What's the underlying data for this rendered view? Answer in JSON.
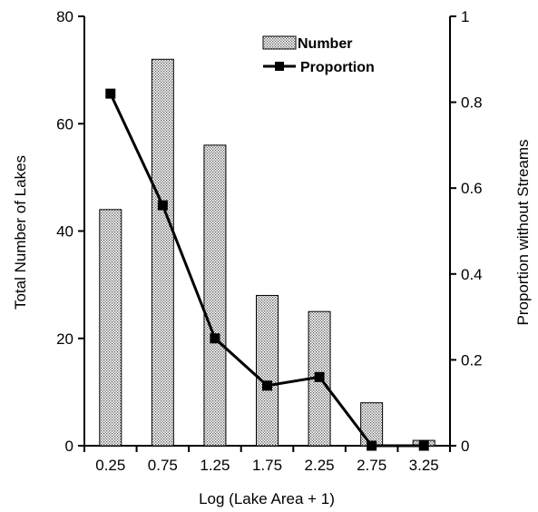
{
  "chart_data": {
    "type": "bar",
    "xlabel": "Log (Lake Area + 1)",
    "ylabel": "Total Number of Lakes",
    "y2label": "Proportion without Streams",
    "categories": [
      "0.25",
      "0.75",
      "1.25",
      "1.75",
      "2.25",
      "2.75",
      "3.25"
    ],
    "ylim": [
      0,
      80
    ],
    "y2lim": [
      0,
      1
    ],
    "yticks": [
      "0",
      "20",
      "40",
      "60",
      "80"
    ],
    "y2ticks": [
      "0",
      "0.2",
      "0.4",
      "0.6",
      "0.8",
      "1"
    ],
    "grid": false,
    "legend_position": "top-right",
    "series": [
      {
        "name": "Number",
        "type": "bar",
        "axis": "left",
        "pattern": "dotted-gray",
        "values": [
          44,
          72,
          56,
          28,
          25,
          8,
          1
        ]
      },
      {
        "name": "Proportion",
        "type": "line",
        "axis": "right",
        "marker": "square",
        "color": "#000000",
        "values": [
          0.82,
          0.56,
          0.25,
          0.14,
          0.16,
          0.0,
          0.0
        ]
      }
    ]
  }
}
